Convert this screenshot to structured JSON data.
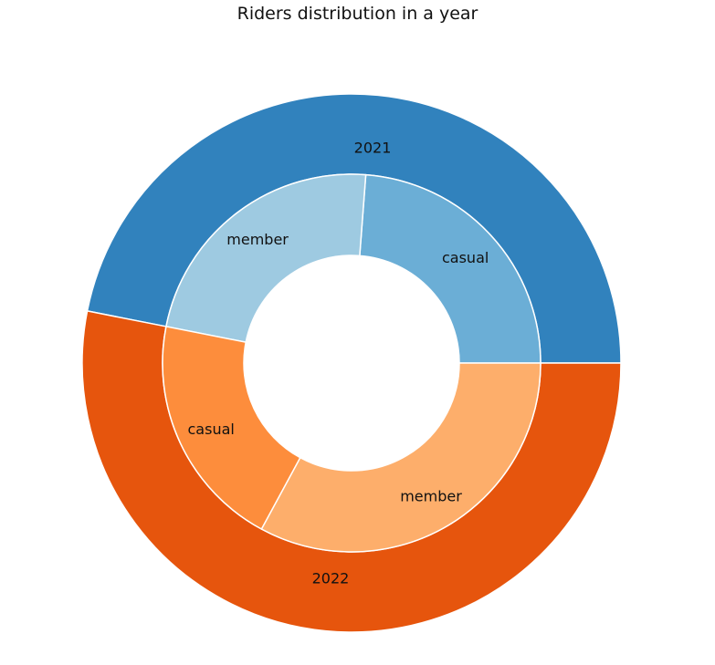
{
  "chart_data": {
    "type": "pie",
    "variant": "nested-donut",
    "title": "Riders distribution in a year",
    "outer": {
      "categories": [
        "2021",
        "2022"
      ],
      "values": [
        46.9,
        53.1
      ],
      "colors": [
        "#3182bd",
        "#e6550d"
      ]
    },
    "inner": {
      "categories": [
        "casual",
        "member",
        "casual",
        "member"
      ],
      "parents": [
        "2021",
        "2021",
        "2022",
        "2022"
      ],
      "values": [
        23.8,
        23.1,
        20.2,
        32.9
      ],
      "colors": [
        "#6baed6",
        "#9ecae1",
        "#fd8d3c",
        "#fdae6b"
      ]
    },
    "start_angle_deg": 0,
    "direction": "counterclockwise",
    "wedge_edge_color": "#ffffff"
  }
}
